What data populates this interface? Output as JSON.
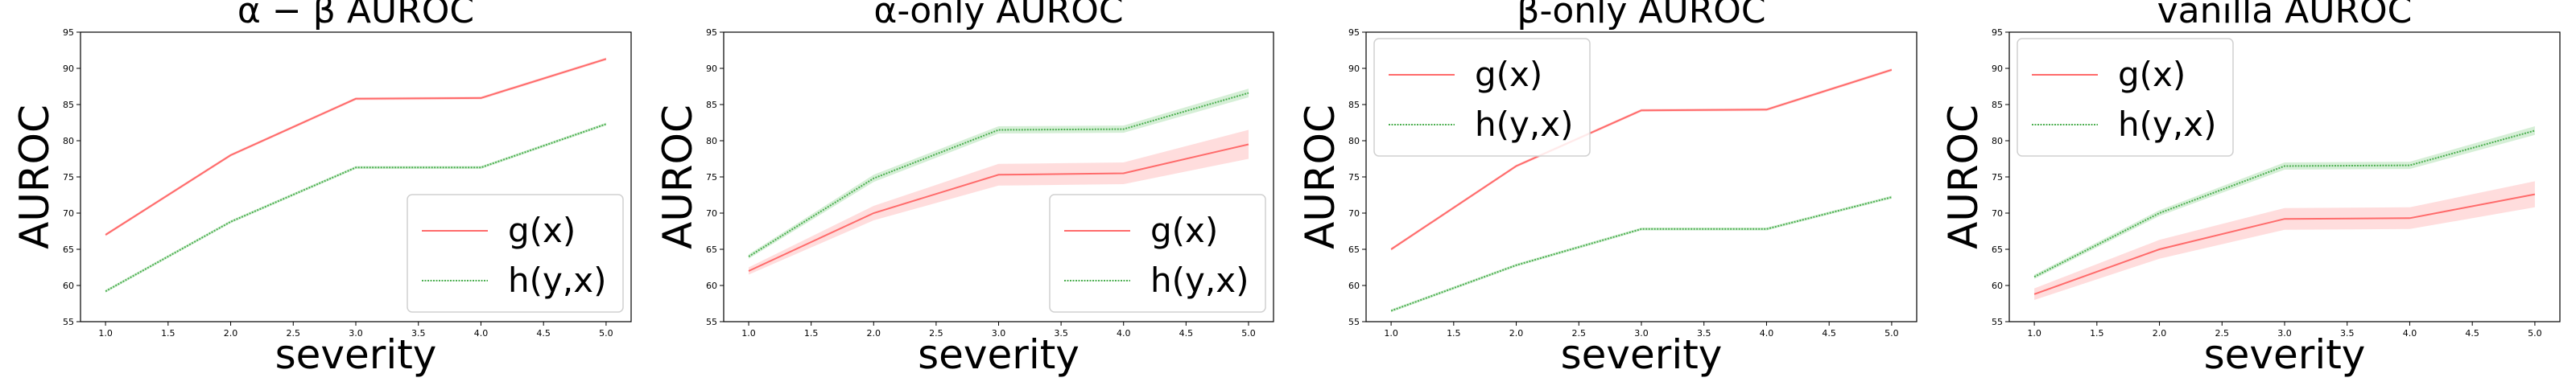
{
  "chart_data": [
    {
      "type": "line",
      "title": "α − β AUROC",
      "xlabel": "severity",
      "ylabel": "AUROC",
      "x": [
        1,
        2,
        3,
        4,
        5
      ],
      "xlim": [
        0.8,
        5.2
      ],
      "ylim": [
        55,
        95
      ],
      "xticks": [
        "1.0",
        "1.5",
        "2.0",
        "2.5",
        "3.0",
        "3.5",
        "4.0",
        "4.5",
        "5.0"
      ],
      "yticks": [
        "55",
        "60",
        "65",
        "70",
        "75",
        "80",
        "85",
        "90",
        "95"
      ],
      "legend": {
        "position": "lower-right",
        "entries": [
          "g(x)",
          "h(y,x)"
        ]
      },
      "series": [
        {
          "name": "g(x)",
          "color": "#ff6b6b",
          "band_color": "#ffb3b3",
          "values": [
            67,
            78,
            85.8,
            85.9,
            91.3
          ],
          "band": [
            0.2,
            0.2,
            0.2,
            0.2,
            0.2
          ]
        },
        {
          "name": "h(y,x)",
          "color": "#4caf50",
          "band_color": "#a5dba6",
          "values": [
            59.2,
            68.8,
            76.3,
            76.3,
            82.3
          ],
          "band": [
            0.2,
            0.2,
            0.2,
            0.2,
            0.2
          ]
        }
      ]
    },
    {
      "type": "line",
      "title": "α-only AUROC",
      "xlabel": "severity",
      "ylabel": "AUROC",
      "x": [
        1,
        2,
        3,
        4,
        5
      ],
      "xlim": [
        0.8,
        5.2
      ],
      "ylim": [
        55,
        95
      ],
      "xticks": [
        "1.0",
        "1.5",
        "2.0",
        "2.5",
        "3.0",
        "3.5",
        "4.0",
        "4.5",
        "5.0"
      ],
      "yticks": [
        "55",
        "60",
        "65",
        "70",
        "75",
        "80",
        "85",
        "90",
        "95"
      ],
      "legend": {
        "position": "lower-right",
        "entries": [
          "g(x)",
          "h(y,x)"
        ]
      },
      "series": [
        {
          "name": "g(x)",
          "color": "#ff6b6b",
          "band_color": "#ffb3b3",
          "values": [
            62,
            70,
            75.3,
            75.5,
            79.5
          ],
          "band": [
            0.5,
            1.0,
            1.5,
            1.5,
            2.0
          ]
        },
        {
          "name": "h(y,x)",
          "color": "#4caf50",
          "band_color": "#a5dba6",
          "values": [
            64,
            74.8,
            81.5,
            81.6,
            86.6
          ],
          "band": [
            0.3,
            0.5,
            0.5,
            0.5,
            0.6
          ]
        }
      ]
    },
    {
      "type": "line",
      "title": "β-only AUROC",
      "xlabel": "severity",
      "ylabel": "AUROC",
      "x": [
        1,
        2,
        3,
        4,
        5
      ],
      "xlim": [
        0.8,
        5.2
      ],
      "ylim": [
        55,
        95
      ],
      "xticks": [
        "1.0",
        "1.5",
        "2.0",
        "2.5",
        "3.0",
        "3.5",
        "4.0",
        "4.5",
        "5.0"
      ],
      "yticks": [
        "55",
        "60",
        "65",
        "70",
        "75",
        "80",
        "85",
        "90",
        "95"
      ],
      "legend": {
        "position": "upper-left",
        "entries": [
          "g(x)",
          "h(y,x)"
        ]
      },
      "series": [
        {
          "name": "g(x)",
          "color": "#ff6b6b",
          "band_color": "#ffb3b3",
          "values": [
            65,
            76.5,
            84.2,
            84.3,
            89.8
          ],
          "band": [
            0.2,
            0.2,
            0.2,
            0.2,
            0.2
          ]
        },
        {
          "name": "h(y,x)",
          "color": "#4caf50",
          "band_color": "#a5dba6",
          "values": [
            56.5,
            62.8,
            67.8,
            67.8,
            72.2
          ],
          "band": [
            0.2,
            0.2,
            0.2,
            0.2,
            0.2
          ]
        }
      ]
    },
    {
      "type": "line",
      "title": "vanilla AUROC",
      "xlabel": "severity",
      "ylabel": "AUROC",
      "x": [
        1,
        2,
        3,
        4,
        5
      ],
      "xlim": [
        0.8,
        5.2
      ],
      "ylim": [
        55,
        95
      ],
      "xticks": [
        "1.0",
        "1.5",
        "2.0",
        "2.5",
        "3.0",
        "3.5",
        "4.0",
        "4.5",
        "5.0"
      ],
      "yticks": [
        "55",
        "60",
        "65",
        "70",
        "75",
        "80",
        "85",
        "90",
        "95"
      ],
      "legend": {
        "position": "upper-left",
        "entries": [
          "g(x)",
          "h(y,x)"
        ]
      },
      "series": [
        {
          "name": "g(x)",
          "color": "#ff6b6b",
          "band_color": "#ffb3b3",
          "values": [
            58.8,
            65,
            69.2,
            69.3,
            72.6
          ],
          "band": [
            0.8,
            1.3,
            1.5,
            1.5,
            1.8
          ]
        },
        {
          "name": "h(y,x)",
          "color": "#4caf50",
          "band_color": "#a5dba6",
          "values": [
            61.2,
            70,
            76.5,
            76.6,
            81.4
          ],
          "band": [
            0.3,
            0.4,
            0.5,
            0.5,
            0.6
          ]
        }
      ]
    }
  ]
}
